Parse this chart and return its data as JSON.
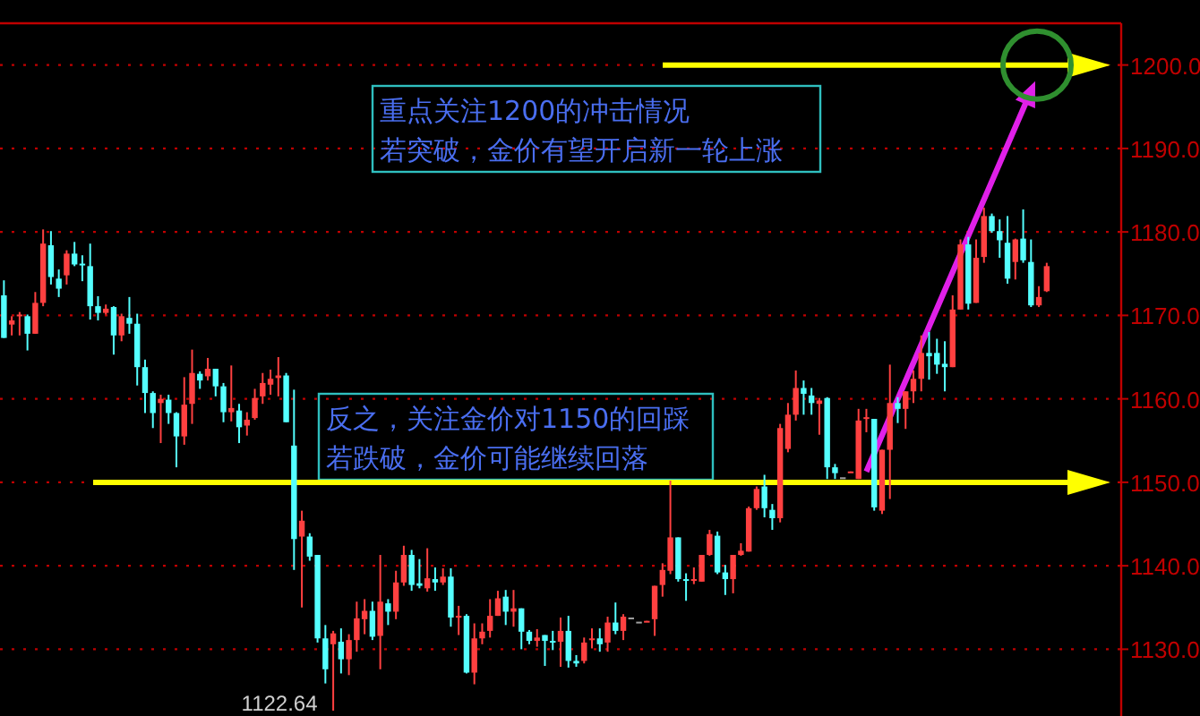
{
  "chart_data": {
    "type": "candlestick",
    "categories": [
      null,
      null,
      null,
      null,
      null,
      null,
      null,
      null,
      null,
      null,
      null,
      null,
      null,
      null,
      null,
      null,
      null,
      null,
      null,
      null,
      null,
      null,
      null,
      null,
      null,
      null,
      null,
      null,
      null,
      null,
      null,
      null,
      null,
      null,
      null,
      null,
      null,
      null,
      null,
      null,
      null,
      null,
      null,
      null,
      null,
      null,
      null,
      null,
      null,
      null,
      null,
      null,
      null,
      null,
      null,
      null,
      null,
      null,
      null,
      null,
      null,
      null,
      null,
      null,
      null,
      null,
      null,
      null,
      null,
      null,
      null,
      null,
      null,
      null,
      null,
      null,
      null,
      null,
      null,
      null,
      null,
      null,
      null,
      null,
      null,
      null,
      null,
      null,
      null,
      null,
      null,
      null,
      null,
      null,
      null,
      null,
      null,
      null,
      null,
      null,
      null,
      null,
      null,
      null,
      null,
      null,
      null,
      null,
      null,
      null,
      null,
      null,
      null,
      null,
      null,
      null,
      null,
      null,
      null,
      null,
      null,
      null,
      null,
      null,
      null,
      null,
      null,
      null,
      null,
      null,
      null,
      null,
      null,
      null,
      null,
      null,
      null,
      null,
      null,
      null,
      null,
      null,
      null
    ],
    "ohlc": [
      [
        1172.4,
        1174.2,
        1167.3,
        1167.3
      ],
      [
        1168.9,
        1169.9,
        1167.6,
        1169.4
      ],
      [
        1170.0,
        1170.4,
        1167.6,
        1170.1
      ],
      [
        1169.9,
        1170.1,
        1165.8,
        1167.8
      ],
      [
        1167.8,
        1172.8,
        1167.8,
        1171.5
      ],
      [
        1171.5,
        1180.3,
        1171.1,
        1178.6
      ],
      [
        1178.4,
        1180.1,
        1173.7,
        1174.6
      ],
      [
        1174.4,
        1175.5,
        1172.2,
        1173.2
      ],
      [
        1174.8,
        1177.8,
        1173.7,
        1177.4
      ],
      [
        1177.4,
        1178.8,
        1175.9,
        1176.1
      ],
      [
        1176.2,
        1177.2,
        1174.1,
        1176.0
      ],
      [
        1175.9,
        1178.6,
        1169.5,
        1171.1
      ],
      [
        1171.1,
        1172.3,
        1169.4,
        1170.3
      ],
      [
        1170.3,
        1171.3,
        1170.1,
        1170.8
      ],
      [
        1171.0,
        1171.1,
        1165.3,
        1167.6
      ],
      [
        1167.6,
        1170.2,
        1166.9,
        1169.9
      ],
      [
        1169.7,
        1172.2,
        1167.8,
        1169.0
      ],
      [
        1169.0,
        1170.2,
        1161.6,
        1163.8
      ],
      [
        1163.8,
        1164.7,
        1158.3,
        1160.7
      ],
      [
        1160.7,
        1160.9,
        1156.5,
        1158.3
      ],
      [
        1159.5,
        1160.5,
        1154.7,
        1160.0
      ],
      [
        1159.9,
        1160.5,
        1157.0,
        1158.3
      ],
      [
        1158.3,
        1158.4,
        1151.8,
        1155.5
      ],
      [
        1155.5,
        1162.6,
        1154.5,
        1159.3
      ],
      [
        1159.4,
        1165.9,
        1157.0,
        1163.1
      ],
      [
        1163.0,
        1163.3,
        1161.2,
        1162.2
      ],
      [
        1162.7,
        1164.9,
        1162.2,
        1163.6
      ],
      [
        1163.6,
        1163.6,
        1160.3,
        1161.5
      ],
      [
        1161.5,
        1161.9,
        1157.2,
        1158.4
      ],
      [
        1158.4,
        1164.0,
        1157.3,
        1158.9
      ],
      [
        1158.6,
        1159.4,
        1154.7,
        1156.6
      ],
      [
        1156.8,
        1158.4,
        1155.6,
        1157.5
      ],
      [
        1157.7,
        1161.2,
        1157.5,
        1160.1
      ],
      [
        1160.3,
        1163.1,
        1159.4,
        1161.9
      ],
      [
        1161.7,
        1163.5,
        1160.5,
        1162.4
      ],
      [
        1162.5,
        1165.0,
        1160.3,
        1162.8
      ],
      [
        1162.8,
        1163.1,
        1157.2,
        1157.2
      ],
      [
        1154.4,
        1161.1,
        1139.5,
        1143.2
      ],
      [
        1143.5,
        1146.6,
        1135.0,
        1145.4
      ],
      [
        1143.5,
        1143.9,
        1140.6,
        1141.1
      ],
      [
        1141.3,
        1141.3,
        1130.8,
        1131.3
      ],
      [
        1131.3,
        1132.9,
        1125.9,
        1127.6
      ],
      [
        1130.6,
        1132.2,
        1122.64,
        1131.9
      ],
      [
        1130.9,
        1132.5,
        1127.1,
        1128.8
      ],
      [
        1128.8,
        1131.8,
        1126.9,
        1131.1
      ],
      [
        1131.1,
        1135.7,
        1129.7,
        1133.7
      ],
      [
        1133.6,
        1136.0,
        1131.8,
        1134.6
      ],
      [
        1134.6,
        1135.7,
        1131.1,
        1131.5
      ],
      [
        1131.6,
        1141.3,
        1127.6,
        1135.7
      ],
      [
        1135.5,
        1136.0,
        1132.9,
        1134.5
      ],
      [
        1134.5,
        1139.4,
        1133.6,
        1138.0
      ],
      [
        1138.0,
        1142.4,
        1137.6,
        1141.3
      ],
      [
        1141.3,
        1141.9,
        1137.0,
        1137.7
      ],
      [
        1137.9,
        1140.8,
        1137.3,
        1137.6
      ],
      [
        1137.3,
        1142.1,
        1136.9,
        1138.5
      ],
      [
        1138.4,
        1139.8,
        1137.0,
        1138.0
      ],
      [
        1138.0,
        1139.7,
        1137.7,
        1138.7
      ],
      [
        1138.7,
        1139.7,
        1132.7,
        1133.8
      ],
      [
        1133.8,
        1135.2,
        1131.7,
        1134.0
      ],
      [
        1134.0,
        1134.2,
        1127.1,
        1127.2
      ],
      [
        1127.2,
        1133.1,
        1125.8,
        1131.3
      ],
      [
        1131.3,
        1133.1,
        1130.6,
        1132.1
      ],
      [
        1132.2,
        1136.0,
        1131.4,
        1134.0
      ],
      [
        1134.0,
        1137.0,
        1134.0,
        1136.1
      ],
      [
        1136.3,
        1137.1,
        1132.9,
        1134.5
      ],
      [
        1134.5,
        1137.1,
        1132.7,
        1134.9
      ],
      [
        1134.9,
        1134.9,
        1130.0,
        1132.1
      ],
      [
        1132.1,
        1132.3,
        1130.6,
        1131.0
      ],
      [
        1131.0,
        1132.4,
        1130.3,
        1131.4
      ],
      [
        1131.7,
        1131.7,
        1128.0,
        1131.0
      ],
      [
        1131.0,
        1132.2,
        1129.9,
        1130.8
      ],
      [
        1130.9,
        1133.8,
        1127.9,
        1132.2
      ],
      [
        1132.2,
        1134.0,
        1127.8,
        1128.6
      ],
      [
        1128.6,
        1129.3,
        1127.9,
        1128.3
      ],
      [
        1128.6,
        1131.4,
        1128.3,
        1130.8
      ],
      [
        1131.1,
        1132.5,
        1130.1,
        1131.3
      ],
      [
        1131.3,
        1132.5,
        1129.7,
        1130.6
      ],
      [
        1130.8,
        1133.9,
        1129.7,
        1133.2
      ],
      [
        1133.2,
        1135.6,
        1131.8,
        1132.2
      ],
      [
        1132.2,
        1134.2,
        1131.1,
        1133.9
      ],
      [
        1133.8,
        1133.8,
        1133.8,
        1133.8
      ],
      [
        1133.3,
        1133.3,
        1133.3,
        1133.3
      ],
      [
        1133.3,
        1133.4,
        1133.3,
        1133.4
      ],
      [
        1133.6,
        1137.6,
        1131.6,
        1137.6
      ],
      [
        1137.7,
        1140.3,
        1136.3,
        1139.5
      ],
      [
        1139.4,
        1150.2,
        1139.0,
        1143.4
      ],
      [
        1143.4,
        1143.4,
        1138.1,
        1138.4
      ],
      [
        1138.4,
        1139.1,
        1135.8,
        1138.2
      ],
      [
        1138.2,
        1139.8,
        1137.8,
        1138.4
      ],
      [
        1138.1,
        1141.3,
        1138.1,
        1141.3
      ],
      [
        1141.3,
        1144.3,
        1141.2,
        1143.8
      ],
      [
        1143.6,
        1144.1,
        1139.0,
        1139.2
      ],
      [
        1139.2,
        1140.1,
        1136.5,
        1138.4
      ],
      [
        1138.4,
        1141.3,
        1136.7,
        1141.3
      ],
      [
        1141.3,
        1142.7,
        1141.2,
        1141.8
      ],
      [
        1141.7,
        1147.1,
        1141.7,
        1146.9
      ],
      [
        1146.9,
        1149.5,
        1146.7,
        1149.2
      ],
      [
        1149.5,
        1150.9,
        1145.8,
        1146.9
      ],
      [
        1146.7,
        1147.4,
        1144.3,
        1145.7
      ],
      [
        1145.7,
        1157.0,
        1145.2,
        1156.5
      ],
      [
        1154.0,
        1159.5,
        1153.6,
        1158.1
      ],
      [
        1158.1,
        1163.4,
        1157.4,
        1161.3
      ],
      [
        1161.3,
        1162.2,
        1158.1,
        1160.6
      ],
      [
        1160.4,
        1161.3,
        1158.1,
        1159.5
      ],
      [
        1159.4,
        1160.1,
        1155.7,
        1159.8
      ],
      [
        1160.1,
        1160.2,
        1150.4,
        1151.8
      ],
      [
        1151.8,
        1152.2,
        1150.4,
        1151.1
      ],
      [
        1150.6,
        1150.6,
        1150.6,
        1150.6
      ],
      [
        1151.2,
        1151.3,
        1151.2,
        1151.3
      ],
      [
        1150.4,
        1158.8,
        1150.4,
        1157.4
      ],
      [
        1157.6,
        1158.8,
        1156.0,
        1157.8
      ],
      [
        1157.6,
        1157.6,
        1146.6,
        1147.0
      ],
      [
        1146.6,
        1153.9,
        1146.2,
        1153.9
      ],
      [
        1153.9,
        1164.1,
        1148.0,
        1159.5
      ],
      [
        1159.5,
        1160.2,
        1157.1,
        1158.8
      ],
      [
        1158.8,
        1160.9,
        1156.4,
        1160.9
      ],
      [
        1160.9,
        1163.4,
        1159.5,
        1162.4
      ],
      [
        1162.4,
        1167.6,
        1160.9,
        1165.5
      ],
      [
        1165.5,
        1168.0,
        1162.3,
        1165.1
      ],
      [
        1165.5,
        1167.2,
        1163.0,
        1164.1
      ],
      [
        1164.2,
        1166.9,
        1160.9,
        1163.8
      ],
      [
        1163.8,
        1172.4,
        1163.8,
        1170.7
      ],
      [
        1170.7,
        1179.1,
        1170.7,
        1178.5
      ],
      [
        1178.5,
        1179.4,
        1170.7,
        1171.4
      ],
      [
        1171.5,
        1179.1,
        1171.5,
        1176.9
      ],
      [
        1177.0,
        1182.9,
        1176.3,
        1181.9
      ],
      [
        1181.9,
        1182.2,
        1179.9,
        1180.1
      ],
      [
        1180.1,
        1181.5,
        1176.9,
        1179.0
      ],
      [
        1178.7,
        1181.9,
        1173.8,
        1174.4
      ],
      [
        1176.4,
        1179.2,
        1174.3,
        1179.1
      ],
      [
        1179.2,
        1182.7,
        1176.3,
        1176.6
      ],
      [
        1176.4,
        1179.1,
        1171.0,
        1171.2
      ],
      [
        1171.2,
        1173.5,
        1171.0,
        1172.2
      ],
      [
        1172.9,
        1176.3,
        1172.8,
        1175.9
      ],
      null,
      null,
      null,
      null,
      null,
      null,
      null,
      null,
      null
    ],
    "colors": [
      "#54ffff",
      "#ff4040",
      "#ff4040",
      "#54ffff",
      "#ff4040",
      "#ff4040",
      "#54ffff",
      "#54ffff",
      "#ff4040",
      "#54ffff",
      "#54ffff",
      "#54ffff",
      "#54ffff",
      "#ff4040",
      "#54ffff",
      "#ff4040",
      "#54ffff",
      "#54ffff",
      "#54ffff",
      "#54ffff",
      "#ff4040",
      "#54ffff",
      "#54ffff",
      "#ff4040",
      "#ff4040",
      "#54ffff",
      "#ff4040",
      "#54ffff",
      "#54ffff",
      "#ff4040",
      "#54ffff",
      "#ff4040",
      "#ff4040",
      "#ff4040",
      "#ff4040",
      "#ff4040",
      "#54ffff",
      "#54ffff",
      "#ff4040",
      "#54ffff",
      "#54ffff",
      "#54ffff",
      "#ff4040",
      "#54ffff",
      "#ff4040",
      "#ff4040",
      "#ff4040",
      "#54ffff",
      "#ff4040",
      "#54ffff",
      "#ff4040",
      "#ff4040",
      "#54ffff",
      "#54ffff",
      "#ff4040",
      "#54ffff",
      "#ff4040",
      "#54ffff",
      "#ff4040",
      "#54ffff",
      "#ff4040",
      "#ff4040",
      "#ff4040",
      "#ff4040",
      "#54ffff",
      "#ff4040",
      "#54ffff",
      "#54ffff",
      "#ff4040",
      "#54ffff",
      "#54ffff",
      "#ff4040",
      "#54ffff",
      "#54ffff",
      "#ff4040",
      "#ff4040",
      "#54ffff",
      "#ff4040",
      "#54ffff",
      "#ff4040",
      "#a0a0a0",
      "#a0a0a0",
      "#ff4040",
      "#ff4040",
      "#ff4040",
      "#ff4040",
      "#54ffff",
      "#54ffff",
      "#ff4040",
      "#ff4040",
      "#ff4040",
      "#54ffff",
      "#54ffff",
      "#ff4040",
      "#ff4040",
      "#ff4040",
      "#ff4040",
      "#54ffff",
      "#54ffff",
      "#ff4040",
      "#ff4040",
      "#ff4040",
      "#54ffff",
      "#54ffff",
      "#ff4040",
      "#54ffff",
      "#54ffff",
      "#a0a0a0",
      "#ff4040",
      "#ff4040",
      "#ff4040",
      "#54ffff",
      "#ff4040",
      "#ff4040",
      "#54ffff",
      "#ff4040",
      "#ff4040",
      "#ff4040",
      "#54ffff",
      "#54ffff",
      "#54ffff",
      "#ff4040",
      "#ff4040",
      "#54ffff",
      "#ff4040",
      "#ff4040",
      "#54ffff",
      "#54ffff",
      "#54ffff",
      "#ff4040",
      "#54ffff",
      "#54ffff",
      "#ff4040",
      "#ff4040",
      null,
      null,
      null,
      null,
      null,
      null,
      null,
      null,
      null
    ],
    "ylim": [
      1122,
      1205
    ],
    "yticks": [
      {
        "value": 1130,
        "label": "1130.0"
      },
      {
        "value": 1140,
        "label": "1140.0"
      },
      {
        "value": 1150,
        "label": "1150.0"
      },
      {
        "value": 1160,
        "label": "1160.0"
      },
      {
        "value": 1170,
        "label": "1170.0"
      },
      {
        "value": 1180,
        "label": "1180.0"
      },
      {
        "value": 1190,
        "label": "1190.0"
      },
      {
        "value": 1200,
        "label": "1200.0"
      }
    ],
    "grid": "y",
    "tick_labels": "y",
    "ref_lines": [
      {
        "axis": "y",
        "value": 1200,
        "color": "#ffff00"
      },
      {
        "axis": "y",
        "value": 1150,
        "color": "#ffff00"
      }
    ],
    "annotations": [
      "重点关注1200的冲击情况",
      "若突破，金价有望开启新一轮上涨",
      "反之，关注金价对1150的回踩",
      "若跌破，金价可能继续回落",
      "1122.64"
    ]
  }
}
